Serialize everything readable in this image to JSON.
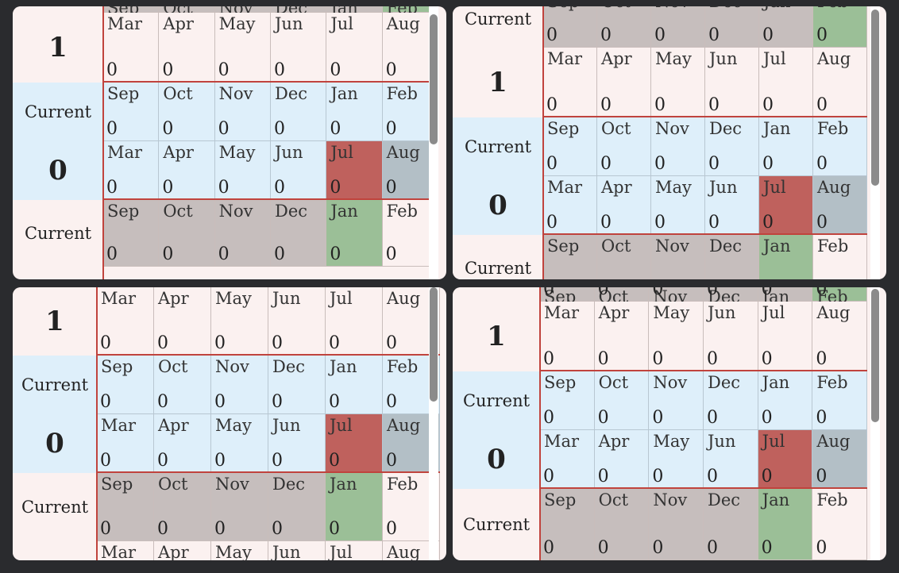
{
  "months_h1": [
    "Sep",
    "Oct",
    "Nov",
    "Dec",
    "Jan",
    "Feb"
  ],
  "months_h2": [
    "Mar",
    "Apr",
    "May",
    "Jun",
    "Jul",
    "Aug"
  ],
  "labels": {
    "current": "Current",
    "one": "1",
    "zero": "0"
  },
  "value": "0",
  "colors": {
    "grey": "#c6bebd",
    "green": "#9bbf97",
    "red": "#bf615d",
    "slate": "#b3bfc6",
    "blue_bg": "#deeffa",
    "pink_bg": "#fbf1f0"
  },
  "panels": [
    {
      "name": "panel-top-left",
      "rows": [
        {
          "label_type": "partial",
          "half": "h1",
          "colors": [
            "grey",
            "grey",
            "grey",
            "grey",
            "grey",
            "green"
          ],
          "bg": "pink"
        },
        {
          "label": "one",
          "half": "h2",
          "colors": [
            "",
            "",
            "",
            "",
            "",
            ""
          ],
          "bg": "pink"
        },
        {
          "label": "current",
          "half": "h1",
          "colors": [
            "",
            "",
            "",
            "",
            "",
            ""
          ],
          "bg": "blue"
        },
        {
          "label": "zero",
          "half": "h2",
          "colors": [
            "",
            "",
            "",
            "",
            "red",
            "slate"
          ],
          "bg": "blue"
        },
        {
          "label": "current",
          "half": "h1",
          "colors": [
            "grey",
            "grey",
            "grey",
            "grey",
            "green",
            ""
          ],
          "bg": "pink"
        }
      ]
    },
    {
      "name": "panel-top-right",
      "rows": [
        {
          "label": "current",
          "half": "h1",
          "colors": [
            "grey",
            "grey",
            "grey",
            "grey",
            "grey",
            "green"
          ],
          "bg": "pink"
        },
        {
          "label": "one",
          "half": "h2",
          "colors": [
            "",
            "",
            "",
            "",
            "",
            ""
          ],
          "bg": "pink"
        },
        {
          "label": "current",
          "half": "h1",
          "colors": [
            "",
            "",
            "",
            "",
            "",
            ""
          ],
          "bg": "blue"
        },
        {
          "label": "zero",
          "half": "h2",
          "colors": [
            "",
            "",
            "",
            "",
            "red",
            "slate"
          ],
          "bg": "blue"
        },
        {
          "label": "current",
          "half": "h1",
          "colors": [
            "grey",
            "grey",
            "grey",
            "grey",
            "green",
            ""
          ],
          "bg": "pink"
        }
      ]
    },
    {
      "name": "panel-bottom-left",
      "rows": [
        {
          "label": "one",
          "half": "h2",
          "colors": [
            "",
            "",
            "",
            "",
            "",
            ""
          ],
          "bg": "pink"
        },
        {
          "label": "current",
          "half": "h1",
          "colors": [
            "",
            "",
            "",
            "",
            "",
            ""
          ],
          "bg": "blue"
        },
        {
          "label": "zero",
          "half": "h2",
          "colors": [
            "",
            "",
            "",
            "",
            "red",
            "slate"
          ],
          "bg": "blue"
        },
        {
          "label": "current",
          "half": "h1",
          "colors": [
            "grey",
            "grey",
            "grey",
            "grey",
            "green",
            ""
          ],
          "bg": "pink"
        },
        {
          "label_type": "partial",
          "half": "h2",
          "colors": [
            "",
            "",
            "",
            "",
            "",
            ""
          ],
          "bg": "pink"
        }
      ]
    },
    {
      "name": "panel-bottom-right",
      "rows": [
        {
          "label_type": "partial",
          "half": "h1",
          "colors": [
            "grey",
            "grey",
            "grey",
            "grey",
            "grey",
            "green"
          ],
          "bg": "pink"
        },
        {
          "label": "one",
          "half": "h2",
          "colors": [
            "",
            "",
            "",
            "",
            "",
            ""
          ],
          "bg": "pink"
        },
        {
          "label": "current",
          "half": "h1",
          "colors": [
            "",
            "",
            "",
            "",
            "",
            ""
          ],
          "bg": "blue"
        },
        {
          "label": "zero",
          "half": "h2",
          "colors": [
            "",
            "",
            "",
            "",
            "red",
            "slate"
          ],
          "bg": "blue"
        },
        {
          "label": "current",
          "half": "h1",
          "colors": [
            "grey",
            "grey",
            "grey",
            "grey",
            "green",
            ""
          ],
          "bg": "pink"
        }
      ]
    }
  ]
}
